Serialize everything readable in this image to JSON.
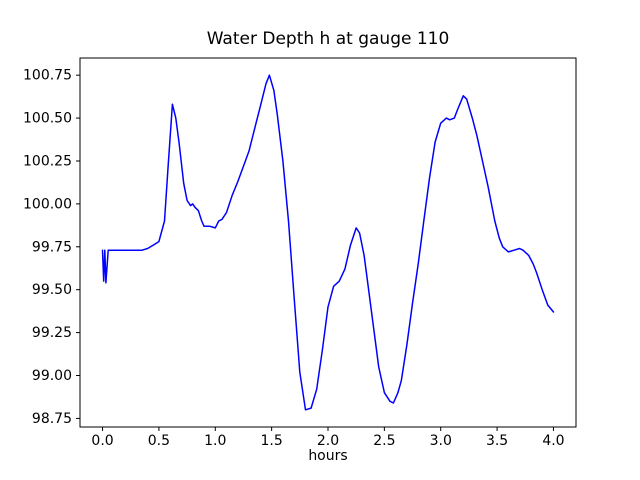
{
  "figure": {
    "title": "Water Depth h at gauge 110",
    "xlabel": "hours"
  },
  "chart_data": {
    "type": "line",
    "title": "Water Depth h at gauge 110",
    "xlabel": "hours",
    "ylabel": "",
    "grid": false,
    "legend": "none",
    "line_color": "#0000ff",
    "line_width": 1.5,
    "xlim": [
      -0.2,
      4.2
    ],
    "ylim": [
      98.7,
      100.85
    ],
    "xtick_values": [
      0.0,
      0.5,
      1.0,
      1.5,
      2.0,
      2.5,
      3.0,
      3.5,
      4.0
    ],
    "xtick_labels": [
      "0.0",
      "0.5",
      "1.0",
      "1.5",
      "2.0",
      "2.5",
      "3.0",
      "3.5",
      "4.0"
    ],
    "ytick_values": [
      98.75,
      99.0,
      99.25,
      99.5,
      99.75,
      100.0,
      100.25,
      100.5,
      100.75
    ],
    "ytick_labels": [
      "98.75",
      "99.00",
      "99.25",
      "99.50",
      "99.75",
      "100.00",
      "100.25",
      "100.50",
      "100.75"
    ],
    "series": [
      {
        "name": "h",
        "x": [
          0.0,
          0.01,
          0.02,
          0.03,
          0.05,
          0.1,
          0.15,
          0.2,
          0.25,
          0.3,
          0.35,
          0.4,
          0.45,
          0.5,
          0.55,
          0.58,
          0.62,
          0.65,
          0.68,
          0.72,
          0.75,
          0.78,
          0.8,
          0.82,
          0.85,
          0.88,
          0.9,
          0.95,
          1.0,
          1.03,
          1.06,
          1.1,
          1.15,
          1.2,
          1.25,
          1.3,
          1.35,
          1.4,
          1.45,
          1.48,
          1.52,
          1.55,
          1.6,
          1.65,
          1.7,
          1.75,
          1.8,
          1.85,
          1.9,
          1.95,
          2.0,
          2.05,
          2.1,
          2.15,
          2.2,
          2.25,
          2.28,
          2.32,
          2.35,
          2.4,
          2.45,
          2.5,
          2.55,
          2.58,
          2.62,
          2.65,
          2.7,
          2.75,
          2.8,
          2.85,
          2.9,
          2.95,
          3.0,
          3.05,
          3.08,
          3.12,
          3.15,
          3.2,
          3.23,
          3.28,
          3.32,
          3.38,
          3.42,
          3.48,
          3.52,
          3.55,
          3.6,
          3.65,
          3.7,
          3.73,
          3.78,
          3.82,
          3.85,
          3.9,
          3.95,
          4.0
        ],
        "y": [
          99.73,
          99.55,
          99.73,
          99.54,
          99.73,
          99.73,
          99.73,
          99.73,
          99.73,
          99.73,
          99.73,
          99.74,
          99.76,
          99.78,
          99.9,
          100.2,
          100.58,
          100.5,
          100.35,
          100.12,
          100.02,
          99.99,
          100.0,
          99.98,
          99.96,
          99.9,
          99.87,
          99.87,
          99.86,
          99.9,
          99.91,
          99.95,
          100.05,
          100.13,
          100.22,
          100.31,
          100.44,
          100.57,
          100.7,
          100.75,
          100.66,
          100.52,
          100.25,
          99.9,
          99.45,
          99.02,
          98.8,
          98.81,
          98.92,
          99.15,
          99.4,
          99.52,
          99.55,
          99.62,
          99.76,
          99.86,
          99.83,
          99.7,
          99.55,
          99.3,
          99.05,
          98.9,
          98.85,
          98.84,
          98.9,
          98.97,
          99.18,
          99.42,
          99.65,
          99.9,
          100.15,
          100.36,
          100.47,
          100.5,
          100.49,
          100.5,
          100.55,
          100.63,
          100.61,
          100.5,
          100.4,
          100.22,
          100.1,
          99.9,
          99.8,
          99.75,
          99.72,
          99.73,
          99.74,
          99.73,
          99.7,
          99.65,
          99.6,
          99.5,
          99.41,
          99.37
        ]
      }
    ]
  }
}
